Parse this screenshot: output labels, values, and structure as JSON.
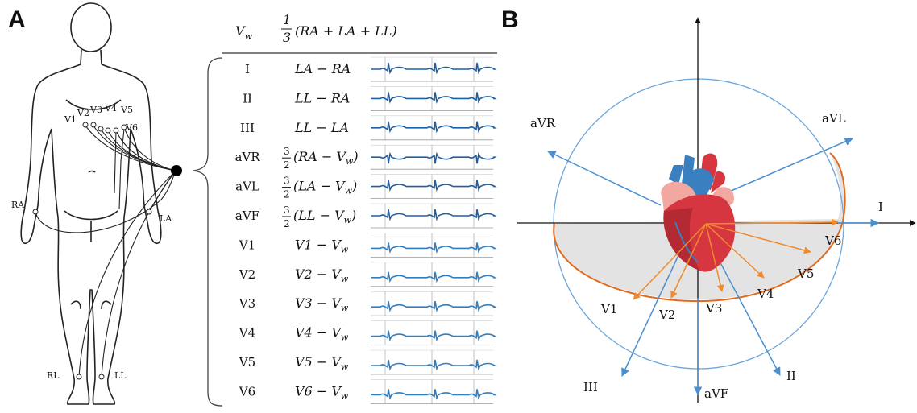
{
  "panel_a": {
    "letter": "A",
    "electrodes": [
      "RA",
      "LA",
      "RL",
      "LL",
      "V1",
      "V2",
      "V3",
      "V4",
      "V5",
      "V6"
    ],
    "header": {
      "symbol": "V_w",
      "symbol_main": "V",
      "symbol_sub": "w",
      "frac_num": "1",
      "frac_den": "3",
      "expr": "(RA + LA + LL)"
    },
    "rows": [
      {
        "lead": "I",
        "frac": "",
        "expr": "LA − RA"
      },
      {
        "lead": "II",
        "frac": "",
        "expr": "LL − RA"
      },
      {
        "lead": "III",
        "frac": "",
        "expr": "LL − LA"
      },
      {
        "lead": "aVR",
        "frac": "3/2",
        "expr": "(RA − V_w)",
        "expr_main": "(RA − V",
        "expr_sub": "w",
        "expr_end": ")"
      },
      {
        "lead": "aVL",
        "frac": "3/2",
        "expr": "(LA − V_w)",
        "expr_main": "(LA − V",
        "expr_sub": "w",
        "expr_end": ")"
      },
      {
        "lead": "aVF",
        "frac": "3/2",
        "expr": "(LL − V_w)",
        "expr_main": "(LL − V",
        "expr_sub": "w",
        "expr_end": ")"
      },
      {
        "lead": "V1",
        "frac": "",
        "expr": "V1 − V_w",
        "expr_main": "V1 − V",
        "expr_sub": "w",
        "expr_end": ""
      },
      {
        "lead": "V2",
        "frac": "",
        "expr": "V2 − V_w",
        "expr_main": "V2 − V",
        "expr_sub": "w",
        "expr_end": ""
      },
      {
        "lead": "V3",
        "frac": "",
        "expr": "V3 − V_w",
        "expr_main": "V3 − V",
        "expr_sub": "w",
        "expr_end": ""
      },
      {
        "lead": "V4",
        "frac": "",
        "expr": "V4 − V_w",
        "expr_main": "V4 − V",
        "expr_sub": "w",
        "expr_end": ""
      },
      {
        "lead": "V5",
        "frac": "",
        "expr": "V5 − V_w",
        "expr_main": "V5 − V",
        "expr_sub": "w",
        "expr_end": ""
      },
      {
        "lead": "V6",
        "frac": "",
        "expr": "V6 − V_w",
        "expr_main": "V6 − V",
        "expr_sub": "w",
        "expr_end": ""
      }
    ],
    "colors": {
      "trace_limb": "#1f5fa6",
      "trace_chest": "#2f7fc4",
      "outline": "#222222"
    }
  },
  "panel_b": {
    "letter": "B",
    "limb_leads": [
      "aVR",
      "aVL",
      "I",
      "II",
      "III",
      "aVF"
    ],
    "chest_leads": [
      "V1",
      "V2",
      "V3",
      "V4",
      "V5",
      "V6"
    ],
    "colors": {
      "limb_axis": "#4a8fd0",
      "chest_vector": "#f08a2c",
      "chest_outline": "#e06a1e",
      "shade": "#e3e3e3",
      "circle": "#6aa6dd",
      "heart_red": "#d5363f",
      "heart_pink": "#f2a7a0",
      "vessel_blue": "#3a7fc0"
    }
  }
}
